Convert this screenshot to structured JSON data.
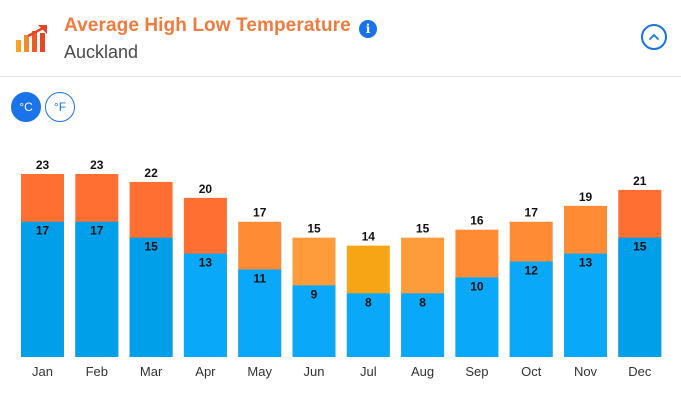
{
  "header": {
    "title": "Average High Low Temperature",
    "subtitle": "Auckland",
    "info_icon": "i"
  },
  "units": {
    "celsius_label": "°C",
    "fahrenheit_label": "°F",
    "selected": "celsius"
  },
  "colors": {
    "title": "#f07b3f",
    "accent": "#1a73e8",
    "high_warm": "#ff6f31",
    "high_mild": "#ff8c35",
    "high_cool": "#fe9b3a",
    "high_coldest": "#f8a515",
    "low_warm": "#009fea",
    "low_cool": "#0aa8f8"
  },
  "chart_data": {
    "type": "bar",
    "categories": [
      "Jan",
      "Feb",
      "Mar",
      "Apr",
      "May",
      "Jun",
      "Jul",
      "Aug",
      "Sep",
      "Oct",
      "Nov",
      "Dec"
    ],
    "series": [
      {
        "values": [
          23,
          23,
          22,
          20,
          17,
          15,
          14,
          15,
          16,
          17,
          19,
          21
        ]
      },
      {
        "values": [
          17,
          17,
          15,
          13,
          11,
          9,
          8,
          8,
          10,
          12,
          13,
          15
        ]
      }
    ],
    "ylim": [
      0,
      23
    ],
    "grid": false,
    "legend": "none"
  }
}
